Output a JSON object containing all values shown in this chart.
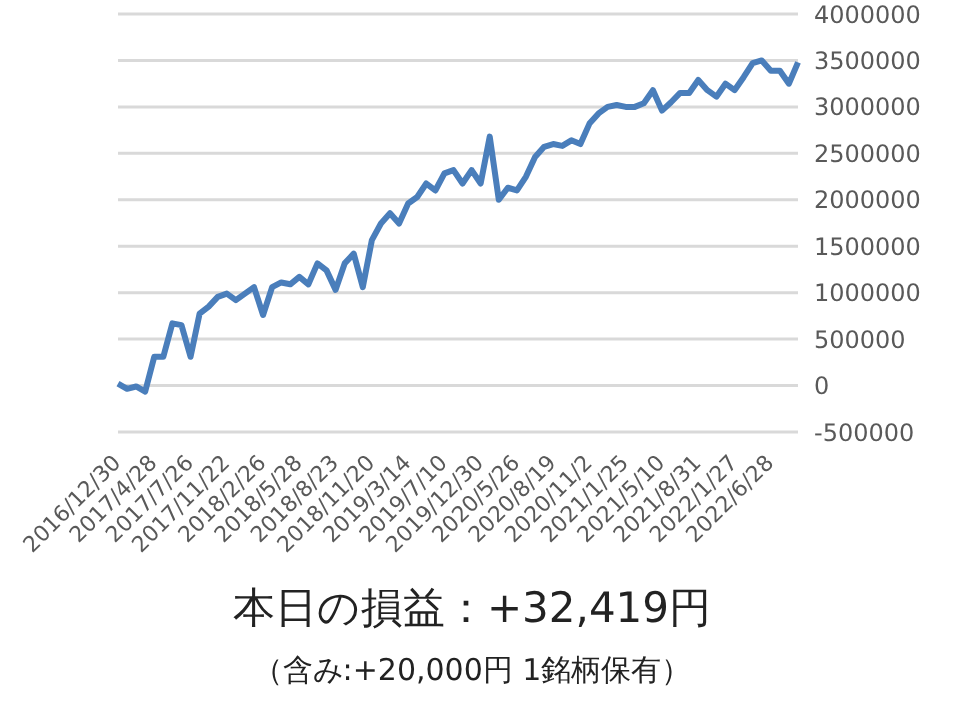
{
  "chart_data": {
    "type": "line",
    "title": "本日の損益：+32,419円",
    "subtitle": "（含み:+20,000円  1銘柄保有）",
    "categories": [
      "2016/12/30",
      null,
      null,
      null,
      "2017/4/28",
      null,
      null,
      null,
      "2017/7/26",
      null,
      null,
      null,
      "2017/11/22",
      null,
      null,
      null,
      "2018/2/26",
      null,
      null,
      null,
      "2018/5/28",
      null,
      null,
      null,
      "2018/8/23",
      null,
      null,
      null,
      "2018/11/20",
      null,
      null,
      null,
      "2019/3/14",
      null,
      null,
      null,
      "2019/7/10",
      null,
      null,
      null,
      "2019/12/30",
      null,
      null,
      null,
      "2020/5/26",
      null,
      null,
      null,
      "2020/8/19",
      null,
      null,
      null,
      "2020/11/2",
      null,
      null,
      null,
      "2021/1/25",
      null,
      null,
      null,
      "2021/5/10",
      null,
      null,
      null,
      "2021/8/31",
      null,
      null,
      null,
      "2022/1/27",
      null,
      null,
      null,
      "2022/6/28",
      null,
      null,
      null
    ],
    "series": [
      {
        "color": "#4a7ebb",
        "values": [
          20000,
          -35000,
          -10000,
          -65000,
          310000,
          310000,
          670000,
          650000,
          310000,
          775000,
          850000,
          955000,
          990000,
          920000,
          990000,
          1060000,
          760000,
          1060000,
          1110000,
          1090000,
          1170000,
          1090000,
          1315000,
          1240000,
          1030000,
          1315000,
          1420000,
          1060000,
          1565000,
          1745000,
          1855000,
          1745000,
          1960000,
          2030000,
          2175000,
          2100000,
          2285000,
          2320000,
          2175000,
          2320000,
          2175000,
          2680000,
          2000000,
          2130000,
          2100000,
          2250000,
          2460000,
          2570000,
          2600000,
          2580000,
          2640000,
          2600000,
          2820000,
          2930000,
          3000000,
          3020000,
          3000000,
          3000000,
          3040000,
          3180000,
          2960000,
          3050000,
          3150000,
          3150000,
          3290000,
          3180000,
          3110000,
          3250000,
          3180000,
          3320000,
          3470000,
          3500000,
          3390000,
          3390000,
          3250000,
          3480000
        ]
      }
    ],
    "ylim": [
      -500000,
      4000000
    ],
    "yticks": [
      -500000,
      0,
      500000,
      1000000,
      1500000,
      2000000,
      2500000,
      3000000,
      3500000,
      4000000
    ],
    "grid": "y",
    "marker": "none",
    "line_style": "solid",
    "legend": false
  }
}
